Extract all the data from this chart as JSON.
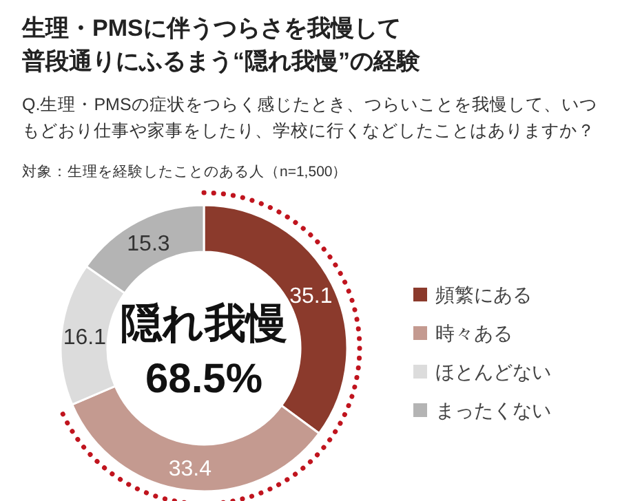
{
  "chart_data": {
    "type": "donut",
    "title": "生理・PMSに伴うつらさを我慢して普段通りにふるまう“隠れ我慢”の経験",
    "subtitle": "Q.生理・PMSの症状をつらく感じたとき、つらいことを我慢して、いつもどおり仕事や家事をしたり、学校に行くなどしたことはありますか？",
    "annotations": [
      "対象：生理を経験したことのある人（n=1,500）",
      "隠れ我慢",
      "68.5%"
    ],
    "categories": [
      "頻繁にある",
      "時々ある",
      "ほとんどない",
      "まったくない"
    ],
    "values": [
      35.1,
      33.4,
      16.1,
      15.3
    ],
    "colors": [
      "#8b3a2c",
      "#c49a90",
      "#dcdcdc",
      "#b4b4b4"
    ],
    "data_labels": true,
    "legend": "right"
  }
}
